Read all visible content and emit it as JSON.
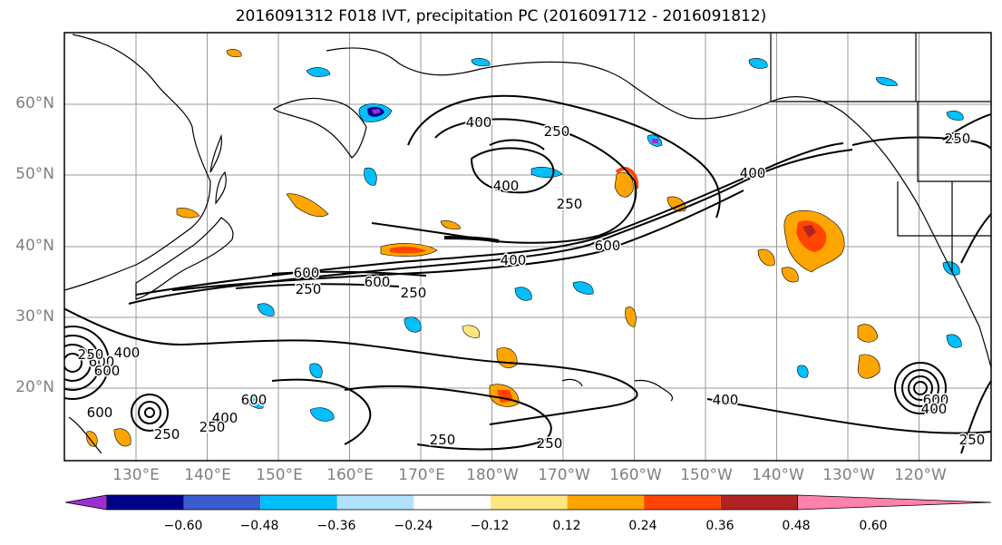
{
  "title": "2016091312 F018 IVT, precipitation PC (2016091712 - 2016091812)",
  "lat_labels": [
    "60°N",
    "50°N",
    "40°N",
    "30°N",
    "20°N"
  ],
  "lon_labels": [
    "130°E",
    "140°E",
    "150°E",
    "160°E",
    "170°E",
    "180°W",
    "170°W",
    "160°W",
    "150°W",
    "140°W",
    "130°W",
    "120°W"
  ],
  "colorbar": {
    "ticks": [
      "−0.60",
      "−0.48",
      "−0.36",
      "−0.24",
      "−0.12",
      "0.12",
      "0.24",
      "0.36",
      "0.48",
      "0.60"
    ],
    "colors": [
      "#9b30d0",
      "#00008b",
      "#3a5ccc",
      "#00bfff",
      "#b0e2ff",
      "#ffffff",
      "#ffe680",
      "#ffa500",
      "#ff4500",
      "#b22222",
      "#ff82ab"
    ],
    "extend": "both"
  },
  "ivt_contour_labels": [
    "400",
    "250",
    "400",
    "250",
    "400",
    "600",
    "600",
    "400",
    "600",
    "250",
    "600",
    "600",
    "250",
    "250",
    "400",
    "600",
    "400",
    "250",
    "600",
    "250",
    "400",
    "250",
    "250",
    "250",
    "600",
    "400",
    "250"
  ],
  "colors": {
    "contour": "#000000",
    "grid": "#999999",
    "axis_label": "#7f7f7f"
  }
}
